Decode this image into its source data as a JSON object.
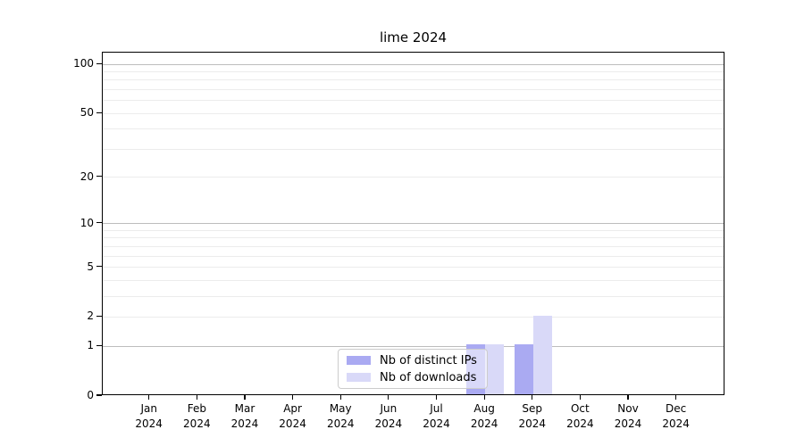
{
  "title": "lime 2024",
  "year_label": "2024",
  "colors": {
    "distinct_ips_bar": "#aaaaf2",
    "downloads_bar": "#d9d9f8",
    "grid_major": "#bdbdbd",
    "grid_minor": "#ececec",
    "axis": "#000000",
    "legend_border": "#cccccc"
  },
  "chart_data": {
    "type": "bar",
    "title": "lime 2024",
    "categories": [
      "Jan 2024",
      "Feb 2024",
      "Mar 2024",
      "Apr 2024",
      "May 2024",
      "Jun 2024",
      "Jul 2024",
      "Aug 2024",
      "Sep 2024",
      "Oct 2024",
      "Nov 2024",
      "Dec 2024"
    ],
    "months": [
      "Jan",
      "Feb",
      "Mar",
      "Apr",
      "May",
      "Jun",
      "Jul",
      "Aug",
      "Sep",
      "Oct",
      "Nov",
      "Dec"
    ],
    "year": "2024",
    "series": [
      {
        "name": "Nb of distinct IPs",
        "color": "#aaaaf2",
        "values": [
          0,
          0,
          0,
          0,
          0,
          0,
          0,
          1,
          1,
          0,
          0,
          0
        ]
      },
      {
        "name": "Nb of downloads",
        "color": "#d9d9f8",
        "values": [
          0,
          0,
          0,
          0,
          0,
          0,
          0,
          1,
          2,
          0,
          0,
          0
        ]
      }
    ],
    "xlabel": "",
    "ylabel": "",
    "yscale": "log1p",
    "ylim": [
      0,
      118
    ],
    "yticks": [
      0,
      1,
      2,
      5,
      10,
      20,
      50,
      100
    ],
    "y_gridlines_major": [
      1,
      10,
      100
    ],
    "y_gridlines_minor": [
      2,
      3,
      4,
      5,
      6,
      7,
      8,
      9,
      20,
      30,
      40,
      50,
      60,
      70,
      80,
      90
    ],
    "grid": "horizontal",
    "legend_position": "inside-bottom-center"
  }
}
